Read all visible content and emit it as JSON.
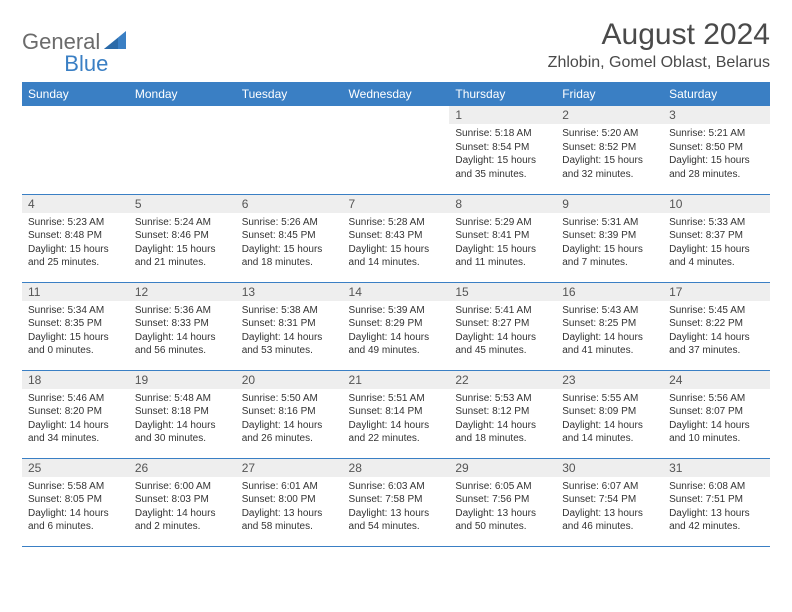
{
  "logo": {
    "text_general": "General",
    "text_blue": "Blue"
  },
  "title": "August 2024",
  "location": "Zhlobin, Gomel Oblast, Belarus",
  "colors": {
    "header_bg": "#3a7fc4",
    "header_text": "#ffffff",
    "daynum_bg": "#eeeeee",
    "text": "#333333",
    "logo_gray": "#6b6b6b",
    "logo_blue": "#3a7fc4"
  },
  "weekdays": [
    "Sunday",
    "Monday",
    "Tuesday",
    "Wednesday",
    "Thursday",
    "Friday",
    "Saturday"
  ],
  "weeks": [
    [
      null,
      null,
      null,
      null,
      {
        "n": "1",
        "sr": "Sunrise: 5:18 AM",
        "ss": "Sunset: 8:54 PM",
        "d1": "Daylight: 15 hours",
        "d2": "and 35 minutes."
      },
      {
        "n": "2",
        "sr": "Sunrise: 5:20 AM",
        "ss": "Sunset: 8:52 PM",
        "d1": "Daylight: 15 hours",
        "d2": "and 32 minutes."
      },
      {
        "n": "3",
        "sr": "Sunrise: 5:21 AM",
        "ss": "Sunset: 8:50 PM",
        "d1": "Daylight: 15 hours",
        "d2": "and 28 minutes."
      }
    ],
    [
      {
        "n": "4",
        "sr": "Sunrise: 5:23 AM",
        "ss": "Sunset: 8:48 PM",
        "d1": "Daylight: 15 hours",
        "d2": "and 25 minutes."
      },
      {
        "n": "5",
        "sr": "Sunrise: 5:24 AM",
        "ss": "Sunset: 8:46 PM",
        "d1": "Daylight: 15 hours",
        "d2": "and 21 minutes."
      },
      {
        "n": "6",
        "sr": "Sunrise: 5:26 AM",
        "ss": "Sunset: 8:45 PM",
        "d1": "Daylight: 15 hours",
        "d2": "and 18 minutes."
      },
      {
        "n": "7",
        "sr": "Sunrise: 5:28 AM",
        "ss": "Sunset: 8:43 PM",
        "d1": "Daylight: 15 hours",
        "d2": "and 14 minutes."
      },
      {
        "n": "8",
        "sr": "Sunrise: 5:29 AM",
        "ss": "Sunset: 8:41 PM",
        "d1": "Daylight: 15 hours",
        "d2": "and 11 minutes."
      },
      {
        "n": "9",
        "sr": "Sunrise: 5:31 AM",
        "ss": "Sunset: 8:39 PM",
        "d1": "Daylight: 15 hours",
        "d2": "and 7 minutes."
      },
      {
        "n": "10",
        "sr": "Sunrise: 5:33 AM",
        "ss": "Sunset: 8:37 PM",
        "d1": "Daylight: 15 hours",
        "d2": "and 4 minutes."
      }
    ],
    [
      {
        "n": "11",
        "sr": "Sunrise: 5:34 AM",
        "ss": "Sunset: 8:35 PM",
        "d1": "Daylight: 15 hours",
        "d2": "and 0 minutes."
      },
      {
        "n": "12",
        "sr": "Sunrise: 5:36 AM",
        "ss": "Sunset: 8:33 PM",
        "d1": "Daylight: 14 hours",
        "d2": "and 56 minutes."
      },
      {
        "n": "13",
        "sr": "Sunrise: 5:38 AM",
        "ss": "Sunset: 8:31 PM",
        "d1": "Daylight: 14 hours",
        "d2": "and 53 minutes."
      },
      {
        "n": "14",
        "sr": "Sunrise: 5:39 AM",
        "ss": "Sunset: 8:29 PM",
        "d1": "Daylight: 14 hours",
        "d2": "and 49 minutes."
      },
      {
        "n": "15",
        "sr": "Sunrise: 5:41 AM",
        "ss": "Sunset: 8:27 PM",
        "d1": "Daylight: 14 hours",
        "d2": "and 45 minutes."
      },
      {
        "n": "16",
        "sr": "Sunrise: 5:43 AM",
        "ss": "Sunset: 8:25 PM",
        "d1": "Daylight: 14 hours",
        "d2": "and 41 minutes."
      },
      {
        "n": "17",
        "sr": "Sunrise: 5:45 AM",
        "ss": "Sunset: 8:22 PM",
        "d1": "Daylight: 14 hours",
        "d2": "and 37 minutes."
      }
    ],
    [
      {
        "n": "18",
        "sr": "Sunrise: 5:46 AM",
        "ss": "Sunset: 8:20 PM",
        "d1": "Daylight: 14 hours",
        "d2": "and 34 minutes."
      },
      {
        "n": "19",
        "sr": "Sunrise: 5:48 AM",
        "ss": "Sunset: 8:18 PM",
        "d1": "Daylight: 14 hours",
        "d2": "and 30 minutes."
      },
      {
        "n": "20",
        "sr": "Sunrise: 5:50 AM",
        "ss": "Sunset: 8:16 PM",
        "d1": "Daylight: 14 hours",
        "d2": "and 26 minutes."
      },
      {
        "n": "21",
        "sr": "Sunrise: 5:51 AM",
        "ss": "Sunset: 8:14 PM",
        "d1": "Daylight: 14 hours",
        "d2": "and 22 minutes."
      },
      {
        "n": "22",
        "sr": "Sunrise: 5:53 AM",
        "ss": "Sunset: 8:12 PM",
        "d1": "Daylight: 14 hours",
        "d2": "and 18 minutes."
      },
      {
        "n": "23",
        "sr": "Sunrise: 5:55 AM",
        "ss": "Sunset: 8:09 PM",
        "d1": "Daylight: 14 hours",
        "d2": "and 14 minutes."
      },
      {
        "n": "24",
        "sr": "Sunrise: 5:56 AM",
        "ss": "Sunset: 8:07 PM",
        "d1": "Daylight: 14 hours",
        "d2": "and 10 minutes."
      }
    ],
    [
      {
        "n": "25",
        "sr": "Sunrise: 5:58 AM",
        "ss": "Sunset: 8:05 PM",
        "d1": "Daylight: 14 hours",
        "d2": "and 6 minutes."
      },
      {
        "n": "26",
        "sr": "Sunrise: 6:00 AM",
        "ss": "Sunset: 8:03 PM",
        "d1": "Daylight: 14 hours",
        "d2": "and 2 minutes."
      },
      {
        "n": "27",
        "sr": "Sunrise: 6:01 AM",
        "ss": "Sunset: 8:00 PM",
        "d1": "Daylight: 13 hours",
        "d2": "and 58 minutes."
      },
      {
        "n": "28",
        "sr": "Sunrise: 6:03 AM",
        "ss": "Sunset: 7:58 PM",
        "d1": "Daylight: 13 hours",
        "d2": "and 54 minutes."
      },
      {
        "n": "29",
        "sr": "Sunrise: 6:05 AM",
        "ss": "Sunset: 7:56 PM",
        "d1": "Daylight: 13 hours",
        "d2": "and 50 minutes."
      },
      {
        "n": "30",
        "sr": "Sunrise: 6:07 AM",
        "ss": "Sunset: 7:54 PM",
        "d1": "Daylight: 13 hours",
        "d2": "and 46 minutes."
      },
      {
        "n": "31",
        "sr": "Sunrise: 6:08 AM",
        "ss": "Sunset: 7:51 PM",
        "d1": "Daylight: 13 hours",
        "d2": "and 42 minutes."
      }
    ]
  ]
}
